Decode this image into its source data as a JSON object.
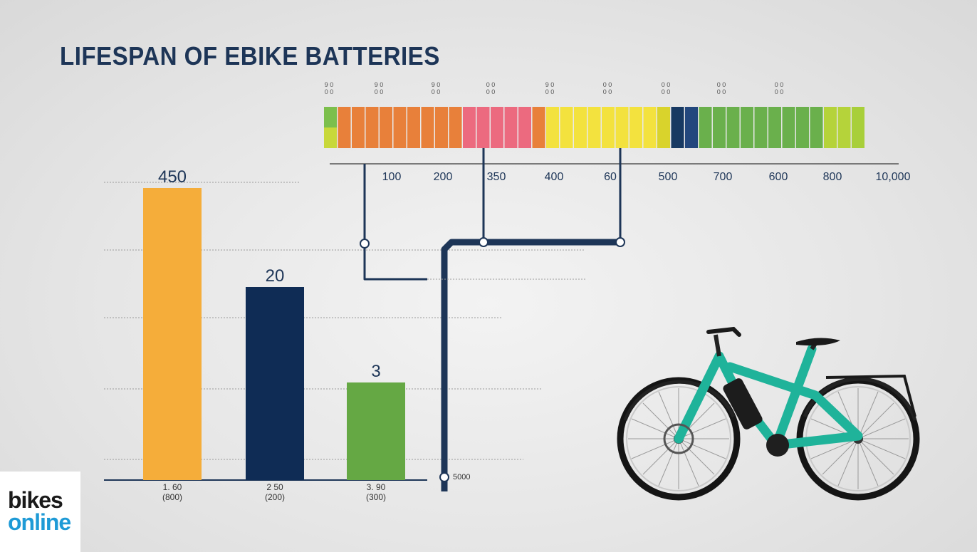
{
  "title": "LIFESPAN OF EBIKE BATTERIES",
  "logo": {
    "line1": "bikes",
    "line2": "online"
  },
  "colors": {
    "navy": "#1d3557",
    "orange_bar": "#f5ad3a",
    "green_bar": "#65a844",
    "ebike_frame": "#1fb39a"
  },
  "chart_data": [
    {
      "type": "bar",
      "categories": [
        "1. 60\n(800)",
        "2 50\n(200)",
        "3. 90\n(300)"
      ],
      "values": [
        450,
        20,
        3
      ],
      "value_labels": [
        "450",
        "20",
        "3"
      ],
      "bar_colors": [
        "#f5ad3a",
        "#0f2c55",
        "#65a844"
      ],
      "grid": true,
      "connector_label": "5000"
    },
    {
      "type": "heatmap",
      "scale_labels": [
        "100",
        "200",
        "350",
        "400",
        "60",
        "500",
        "700",
        "600",
        "800",
        "10,000"
      ],
      "top_labels": [
        "9 0\n0 0",
        "9 0\n0 0",
        "9 0\n0 0",
        "0 0\n0 0",
        "9 0\n0 0",
        "0 0\n0 0",
        "0 0\n0 0",
        "0 0\n0 0",
        "0 0\n0 0"
      ],
      "segments": [
        {
          "color": "#7cbf4c",
          "count": 1
        },
        {
          "color": "#e8803a",
          "count": 9
        },
        {
          "color": "#ec6a7f",
          "count": 5
        },
        {
          "color": "#e8803a",
          "count": 1
        },
        {
          "color": "#f3e23e",
          "count": 8
        },
        {
          "color": "#d9d32c",
          "count": 1
        },
        {
          "color": "#173962",
          "count": 1
        },
        {
          "color": "#23477d",
          "count": 1
        },
        {
          "color": "#6ab04c",
          "count": 9
        },
        {
          "color": "#b5d33a",
          "count": 2
        },
        {
          "color": "#a8cf3a",
          "count": 1
        }
      ]
    }
  ]
}
